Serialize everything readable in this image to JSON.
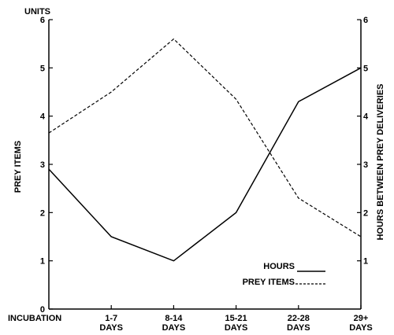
{
  "chart_data": {
    "type": "line",
    "title": "",
    "units_label": "UNITS",
    "categories": [
      "INCUBATION",
      "1-7 DAYS",
      "8-14 DAYS",
      "15-21 DAYS",
      "22-28 DAYS",
      "29+ DAYS"
    ],
    "category_lines": [
      [
        "INCUBATION"
      ],
      [
        "1-7",
        "DAYS"
      ],
      [
        "8-14",
        "DAYS"
      ],
      [
        "15-21",
        "DAYS"
      ],
      [
        "22-28",
        "DAYS"
      ],
      [
        "29+",
        "DAYS"
      ]
    ],
    "ylabel_left": "PREY ITEMS",
    "ylabel_right": "HOURS BETWEEN PREY DELIVERIES",
    "ylim": [
      0,
      6
    ],
    "yticks_left": [
      "0",
      "1",
      "2",
      "3",
      "4",
      "5",
      "6"
    ],
    "yticks_right": [
      "1",
      "2",
      "3",
      "4",
      "5",
      "6"
    ],
    "yticks_right_values": [
      1,
      2,
      3,
      4,
      5,
      6
    ],
    "grid": false,
    "legend_position": "bottom-right",
    "series": [
      {
        "name": "HOURS",
        "style": "solid",
        "color": "#000000",
        "values": [
          2.9,
          1.5,
          1.0,
          2.0,
          4.3,
          5.0
        ]
      },
      {
        "name": "PREY ITEMS",
        "style": "dashed",
        "color": "#000000",
        "values": [
          3.65,
          4.5,
          5.6,
          4.35,
          2.3,
          1.5
        ]
      }
    ]
  }
}
